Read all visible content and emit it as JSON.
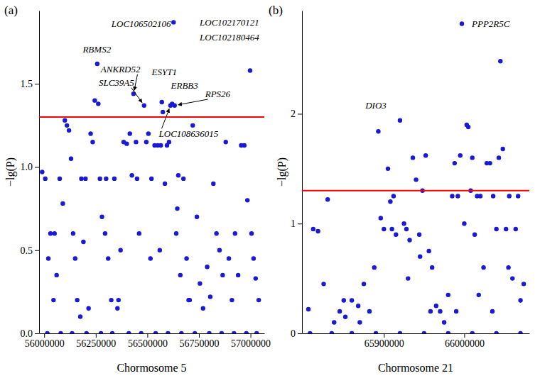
{
  "chart_data": [
    {
      "type": "scatter",
      "panel_label": "(a)",
      "x_label": "Chormosome 5",
      "y_label": "−lg(P)",
      "color": "#1a1ad6",
      "xlim": [
        55975000,
        57067000
      ],
      "xticks": [
        56000000,
        56250000,
        56500000,
        56750000,
        57000000
      ],
      "ylim": [
        0,
        1.94
      ],
      "yticks": [
        {
          "value": 0,
          "label": "0.0"
        },
        {
          "value": 0.5,
          "label": "0.5"
        },
        {
          "value": 1,
          "label": "1.0"
        },
        {
          "value": 1.5,
          "label": "1.5"
        }
      ],
      "threshold": 1.3,
      "x": [
        55990000,
        56005000,
        56020000,
        56030000,
        56045000,
        56060000,
        56075000,
        56090000,
        56100000,
        56110000,
        56120000,
        56130000,
        56140000,
        56150000,
        56160000,
        56175000,
        56190000,
        56200000,
        56215000,
        56225000,
        56235000,
        56245000,
        56257000,
        56262000,
        56270000,
        56280000,
        56295000,
        56310000,
        56325000,
        56340000,
        56355000,
        56370000,
        56385000,
        56400000,
        56415000,
        56425000,
        56433000,
        56445000,
        56460000,
        56484000,
        56495000,
        56505000,
        56520000,
        56535000,
        56550000,
        56565000,
        56570000,
        56575000,
        56585000,
        56595000,
        56605000,
        56612000,
        56620000,
        56627000,
        56632000,
        56640000,
        56650000,
        56660000,
        56675000,
        56690000,
        56705000,
        56720000,
        56740000,
        56755000,
        56770000,
        56790000,
        56805000,
        56820000,
        56835000,
        56850000,
        56865000,
        56880000,
        56895000,
        56910000,
        56925000,
        56940000,
        56955000,
        56970000,
        56985000,
        56998000,
        57005000,
        57015000,
        57025000,
        57040000,
        56015000,
        56080000,
        56135000,
        56205000,
        56275000,
        56330000,
        56410000,
        56470000,
        56540000,
        56600000,
        56665000,
        56730000,
        56800000,
        56860000,
        56920000,
        56980000,
        57030000,
        56050000,
        56180000,
        56300000,
        56360000,
        56450000,
        56515000,
        56560000,
        56645000,
        56700000
      ],
      "values": [
        0.97,
        0.93,
        0.45,
        0.6,
        0.2,
        0.35,
        0.93,
        0.78,
        1.28,
        1.25,
        1.22,
        1.05,
        0.6,
        0.45,
        0.2,
        0.1,
        0.55,
        0.93,
        0.15,
        1.2,
        1.15,
        1.4,
        1.62,
        1.38,
        0.93,
        0.7,
        0.6,
        0.45,
        0.2,
        0.93,
        0.15,
        0.5,
        1.15,
        1.14,
        1.2,
        0.95,
        1.44,
        1.15,
        0.6,
        1.37,
        1.15,
        1.2,
        0.93,
        1.13,
        1.13,
        1.13,
        1.39,
        1.33,
        0.9,
        1.13,
        1.15,
        1.37,
        1.38,
        1.87,
        1.37,
        0.6,
        0.95,
        0.35,
        0.93,
        0.45,
        0.2,
        1.25,
        0.7,
        0.3,
        0.15,
        0.4,
        0.22,
        0.9,
        0.6,
        0.5,
        0.35,
        1.15,
        0.45,
        0.2,
        0.6,
        0.35,
        1.13,
        1.13,
        0.8,
        1.58,
        0.6,
        0.45,
        0.33,
        0.2,
        0,
        0,
        0,
        0,
        0,
        0,
        0,
        0,
        0,
        0,
        0,
        0,
        0,
        0,
        0,
        0,
        0,
        0.6,
        0.93,
        0.93,
        0.2,
        0.93,
        0.45,
        0.5,
        0.75,
        0.2
      ],
      "annotations": [
        {
          "text": "LOC106502106",
          "x": 56470000,
          "y": 1.84
        },
        {
          "text": "RBMS2",
          "x": 56255000,
          "y": 1.69
        },
        {
          "text": "ANKRD52",
          "x": 56370000,
          "y": 1.57,
          "target": {
            "x": 56433000,
            "y": 1.44
          }
        },
        {
          "text": "SLC39A5",
          "x": 56350000,
          "y": 1.49,
          "target": {
            "x": 56484000,
            "y": 1.37
          }
        },
        {
          "text": "ESYT1",
          "x": 56582000,
          "y": 1.55
        },
        {
          "text": "ERBB3",
          "x": 56680000,
          "y": 1.47
        },
        {
          "text": "RPS26",
          "x": 56841000,
          "y": 1.42,
          "target": {
            "x": 56632000,
            "y": 1.37
          }
        },
        {
          "text": "LOC108636015",
          "x": 56700000,
          "y": 1.18,
          "target": {
            "x": 56612000,
            "y": 1.37
          }
        },
        {
          "text": "LOC102170121",
          "x": 56898000,
          "y": 1.85
        },
        {
          "text": "LOC102180464",
          "x": 56898000,
          "y": 1.76
        }
      ]
    },
    {
      "type": "scatter",
      "panel_label": "(b)",
      "x_label": "Chormosome 21",
      "y_label": "−lg(P)",
      "color": "#1a1ad6",
      "xlim": [
        65798000,
        66081000
      ],
      "xticks": [
        65900000,
        66000000
      ],
      "ylim": [
        0,
        2.94
      ],
      "yticks": [
        0,
        1,
        2
      ],
      "threshold": 1.3,
      "x": [
        65806000,
        65812000,
        65818000,
        65825000,
        65830000,
        65838000,
        65845000,
        65852000,
        65860000,
        65868000,
        65875000,
        65882000,
        65888000,
        65893000,
        65896000,
        65900000,
        65905000,
        65908000,
        65912000,
        65915000,
        65920000,
        65925000,
        65928000,
        65932000,
        65936000,
        65940000,
        65944000,
        65948000,
        65952000,
        65956000,
        65960000,
        65965000,
        65970000,
        65975000,
        65980000,
        65985000,
        65988000,
        65992000,
        65995000,
        65997000,
        66000000,
        66003000,
        66005000,
        66008000,
        66010000,
        66013000,
        66016000,
        66020000,
        66024000,
        66028000,
        66032000,
        66036000,
        66040000,
        66043000,
        66045000,
        66048000,
        66052000,
        66056000,
        66060000,
        66064000,
        66067000,
        66070000,
        66074000,
        65808000,
        65835000,
        65860000,
        65890000,
        65920000,
        65950000,
        65980000,
        66010000,
        66040000,
        66070000,
        65850000,
        65870000,
        65910000,
        65930000,
        65945000,
        65958000,
        65990000,
        66018000,
        66035000,
        66055000
      ],
      "values": [
        0.22,
        0.95,
        0.93,
        0.45,
        1.22,
        0.1,
        0.2,
        0.15,
        0.3,
        0.25,
        0.45,
        0.2,
        0.6,
        1.84,
        1.05,
        0.95,
        1.5,
        1.2,
        1.25,
        0.9,
        1.94,
        1.0,
        0.95,
        0.85,
        1.6,
        1.4,
        0.9,
        1.3,
        1.62,
        0.75,
        0.6,
        0.25,
        0.2,
        0.1,
        0.35,
        1.25,
        1.55,
        1.25,
        1.62,
        2.82,
        1.0,
        1.9,
        1.88,
        1.3,
        1.6,
        0.9,
        1.25,
        1.25,
        0.6,
        1.55,
        1.55,
        1.25,
        0.95,
        1.6,
        2.48,
        1.68,
        0.95,
        1.25,
        0.5,
        0.95,
        1.25,
        0.3,
        0.45,
        0,
        0,
        0,
        0,
        0,
        0,
        0,
        0,
        0,
        0,
        0.3,
        0.1,
        0.95,
        0.5,
        0.7,
        0.2,
        0.2,
        0.35,
        0.2,
        0.6
      ],
      "annotations": [
        {
          "text": "DIO3",
          "x": 65890000,
          "y": 2.05
        },
        {
          "text": "PPP2R5C",
          "x": 66033000,
          "y": 2.79
        }
      ]
    }
  ]
}
